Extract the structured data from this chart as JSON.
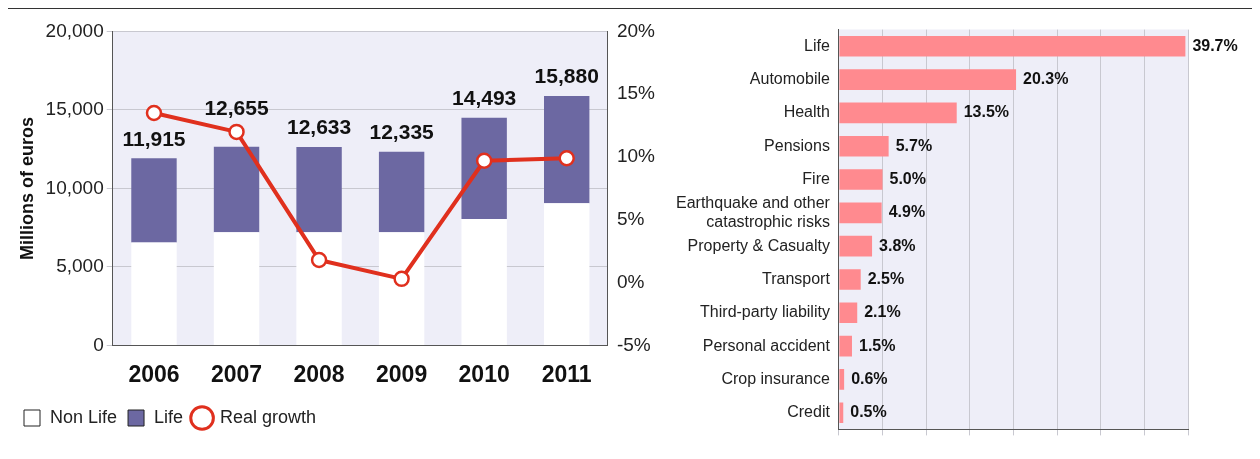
{
  "chart_data": [
    {
      "type": "bar",
      "stacked": true,
      "categories": [
        "2006",
        "2007",
        "2008",
        "2009",
        "2010",
        "2011"
      ],
      "series": [
        {
          "name": "Non Life",
          "color": "#ffffff",
          "values": [
            6550,
            7200,
            7200,
            7200,
            8050,
            9050
          ]
        },
        {
          "name": "Life",
          "color": "#6c68a2",
          "values": [
            5365,
            5455,
            5433,
            5135,
            6443,
            6830
          ]
        },
        {
          "name": "Real growth",
          "type": "line",
          "axis": "y2",
          "color": "#e0301e",
          "values": [
            13.5,
            12.0,
            1.8,
            0.3,
            9.7,
            9.9
          ]
        }
      ],
      "totals": [
        "11,915",
        "12,655",
        "12,633",
        "12,335",
        "14,493",
        "15,880"
      ],
      "ylabel": "Millions of euros",
      "ylim": [
        0,
        20000
      ],
      "yticks": [
        {
          "value": 0,
          "label": "0"
        },
        {
          "value": 5000,
          "label": "5,000"
        },
        {
          "value": 10000,
          "label": "10,000"
        },
        {
          "value": 15000,
          "label": "15,000"
        },
        {
          "value": 20000,
          "label": "20,000"
        }
      ],
      "y2lim": [
        -5,
        20
      ],
      "y2ticks": [
        {
          "value": -5,
          "label": "-5%"
        },
        {
          "value": 0,
          "label": "0%"
        },
        {
          "value": 5,
          "label": "5%"
        },
        {
          "value": 10,
          "label": "10%"
        },
        {
          "value": 15,
          "label": "15%"
        },
        {
          "value": 20,
          "label": "20%"
        }
      ],
      "grid": "y",
      "legend": "bottom",
      "marker": "circle"
    },
    {
      "type": "bar",
      "orientation": "horizontal",
      "categories": [
        "Life",
        "Automobile",
        "Health",
        "Pensions",
        "Fire",
        "Earthquake and other catastrophic risks",
        "Property & Casualty",
        "Transport",
        "Third-party liability",
        "Personal accident",
        "Crop insurance",
        "Credit"
      ],
      "values": [
        39.7,
        20.3,
        13.5,
        5.7,
        5.0,
        4.9,
        3.8,
        2.5,
        2.1,
        1.5,
        0.6,
        0.5
      ],
      "value_labels": [
        "39.7%",
        "20.3%",
        "13.5%",
        "5.7%",
        "5.0%",
        "4.9%",
        "3.8%",
        "2.5%",
        "2.1%",
        "1.5%",
        "0.6%",
        "0.5%"
      ],
      "color": "#ff8a8f",
      "grid": "x",
      "tick_labels": "y"
    }
  ]
}
